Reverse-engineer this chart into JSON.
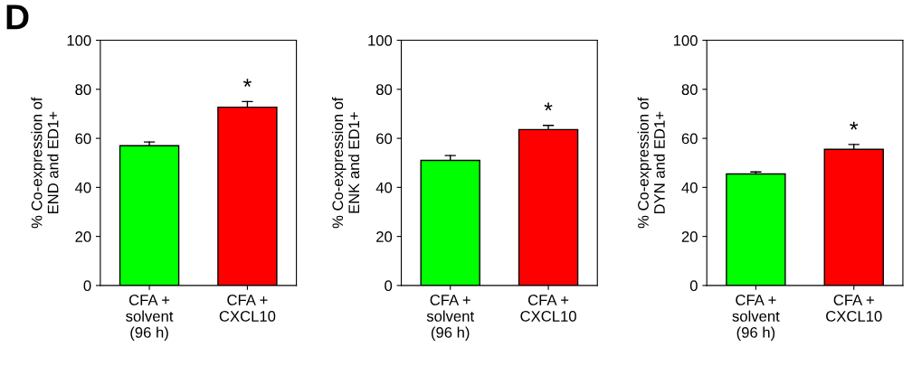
{
  "chart_data": [
    {
      "type": "bar",
      "categories": [
        "CFA +\nsolvent\n(96 h)",
        "CFA +\nCXCL10"
      ],
      "values": [
        57,
        72.7
      ],
      "colors": [
        "#00ff00",
        "#ff0000"
      ],
      "errors": [
        [
          57,
          58.5
        ],
        [
          72.7,
          75
        ]
      ],
      "ylabel": "% Co-expression of\nEND and ED1+",
      "ylim": [
        0,
        100
      ],
      "yticks": [
        0,
        20,
        40,
        60,
        80,
        100
      ],
      "grid": false,
      "legend": false,
      "annotations": [
        "D",
        {
          "text": "*",
          "x": "CFA +\nCXCL10",
          "y": 75
        }
      ]
    },
    {
      "type": "bar",
      "categories": [
        "CFA +\nsolvent\n(96 h)",
        "CFA +\nCXCL10"
      ],
      "values": [
        51,
        63.6
      ],
      "colors": [
        "#00ff00",
        "#ff0000"
      ],
      "errors": [
        [
          51,
          53
        ],
        [
          63.6,
          65.3
        ]
      ],
      "ylabel": "% Co-expression of\nENK and ED1+",
      "ylim": [
        0,
        100
      ],
      "yticks": [
        0,
        20,
        40,
        60,
        80,
        100
      ],
      "grid": false,
      "legend": false,
      "annotations": [
        {
          "text": "*",
          "x": "CFA +\nCXCL10",
          "y": 65.3
        }
      ]
    },
    {
      "type": "bar",
      "categories": [
        "CFA +\nsolvent\n(96 h)",
        "CFA +\nCXCL10"
      ],
      "values": [
        45.5,
        55.5
      ],
      "colors": [
        "#00ff00",
        "#ff0000"
      ],
      "errors": [
        [
          45.5,
          46.3
        ],
        [
          55.5,
          57.5
        ]
      ],
      "ylabel": "% Co-expression of\nDYN and ED1+",
      "ylim": [
        0,
        100
      ],
      "yticks": [
        0,
        20,
        40,
        60,
        80,
        100
      ],
      "grid": false,
      "legend": false,
      "annotations": [
        {
          "text": "*",
          "x": "CFA +\nCXCL10",
          "y": 57.5
        }
      ]
    }
  ]
}
